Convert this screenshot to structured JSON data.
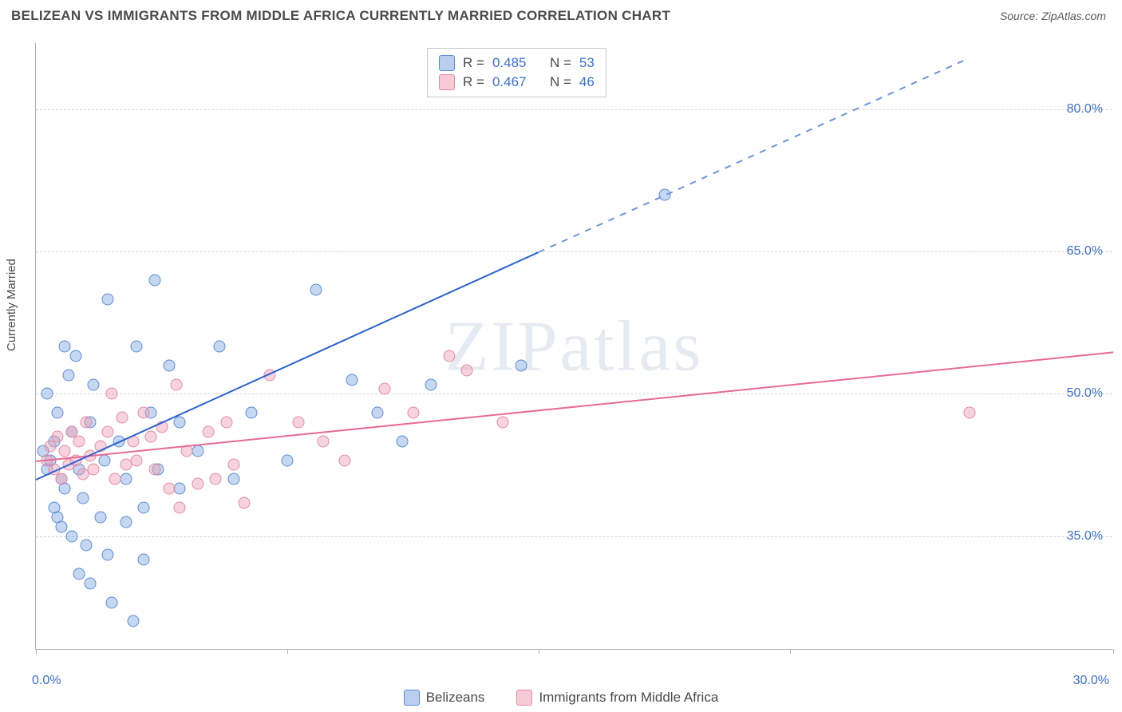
{
  "title": "BELIZEAN VS IMMIGRANTS FROM MIDDLE AFRICA CURRENTLY MARRIED CORRELATION CHART",
  "source": "Source: ZipAtlas.com",
  "watermark": "ZIPatlas",
  "y_axis_label": "Currently Married",
  "chart": {
    "type": "scatter",
    "xlim": [
      0,
      30
    ],
    "ylim": [
      23,
      87
    ],
    "x_ticks": [
      0,
      7,
      14,
      21,
      30
    ],
    "x_tick_labels": [
      "0.0%",
      "",
      "",
      "",
      "30.0%"
    ],
    "y_ticks": [
      35,
      50,
      65,
      80
    ],
    "y_tick_labels": [
      "35.0%",
      "50.0%",
      "65.0%",
      "80.0%"
    ],
    "grid_color": "#d6d6d6",
    "axis_color": "#b0b0b0",
    "background_color": "#ffffff",
    "tick_label_color": "#3b6fd6",
    "marker_radius": 7.5,
    "marker_fill_opacity": 0.45
  },
  "series": [
    {
      "name": "Belizeans",
      "color": "#5a8cd6",
      "fill": "rgba(128,168,223,0.45)",
      "R": 0.485,
      "N": 53,
      "trend": {
        "x1": 0,
        "y1": 41,
        "x2_solid": 14,
        "y2_solid": 65,
        "x2_dash": 26,
        "y2_dash": 85.5,
        "solid_color": "#2a62d4",
        "dash_color": "#6a94dc"
      },
      "points": [
        [
          0.2,
          44
        ],
        [
          0.3,
          50
        ],
        [
          0.3,
          42
        ],
        [
          0.4,
          43
        ],
        [
          0.5,
          45
        ],
        [
          0.5,
          38
        ],
        [
          0.6,
          48
        ],
        [
          0.6,
          37
        ],
        [
          0.7,
          41
        ],
        [
          0.7,
          36
        ],
        [
          0.8,
          55
        ],
        [
          0.8,
          40
        ],
        [
          0.9,
          52
        ],
        [
          1.0,
          46
        ],
        [
          1.0,
          35
        ],
        [
          1.1,
          54
        ],
        [
          1.2,
          42
        ],
        [
          1.2,
          31
        ],
        [
          1.3,
          39
        ],
        [
          1.4,
          34
        ],
        [
          1.5,
          47
        ],
        [
          1.5,
          30
        ],
        [
          1.6,
          51
        ],
        [
          1.8,
          37
        ],
        [
          1.9,
          43
        ],
        [
          2.0,
          60
        ],
        [
          2.0,
          33
        ],
        [
          2.1,
          28
        ],
        [
          2.3,
          45
        ],
        [
          2.5,
          41
        ],
        [
          2.5,
          36.5
        ],
        [
          2.7,
          26
        ],
        [
          2.8,
          55
        ],
        [
          3.0,
          38
        ],
        [
          3.0,
          32.5
        ],
        [
          3.2,
          48
        ],
        [
          3.3,
          62
        ],
        [
          3.4,
          42
        ],
        [
          3.7,
          53
        ],
        [
          4.0,
          40
        ],
        [
          4.0,
          47
        ],
        [
          4.5,
          44
        ],
        [
          5.1,
          55
        ],
        [
          5.5,
          41
        ],
        [
          6.0,
          48
        ],
        [
          7.0,
          43
        ],
        [
          7.8,
          61
        ],
        [
          8.8,
          51.5
        ],
        [
          9.5,
          48
        ],
        [
          10.2,
          45
        ],
        [
          11.0,
          51
        ],
        [
          13.5,
          53
        ],
        [
          17.5,
          71
        ]
      ]
    },
    {
      "name": "Immigrants from Middle Africa",
      "color": "#e589a5",
      "fill": "rgba(238,160,180,0.45)",
      "R": 0.467,
      "N": 46,
      "trend": {
        "x1": 0,
        "y1": 43,
        "x2_solid": 30,
        "y2_solid": 54.5,
        "solid_color": "#e86b93"
      },
      "points": [
        [
          0.3,
          43
        ],
        [
          0.4,
          44.5
        ],
        [
          0.5,
          42
        ],
        [
          0.6,
          45.5
        ],
        [
          0.7,
          41
        ],
        [
          0.8,
          44
        ],
        [
          0.9,
          42.5
        ],
        [
          1.0,
          46
        ],
        [
          1.1,
          43
        ],
        [
          1.2,
          45
        ],
        [
          1.3,
          41.5
        ],
        [
          1.4,
          47
        ],
        [
          1.5,
          43.5
        ],
        [
          1.6,
          42
        ],
        [
          1.8,
          44.5
        ],
        [
          2.0,
          46
        ],
        [
          2.1,
          50
        ],
        [
          2.2,
          41
        ],
        [
          2.4,
          47.5
        ],
        [
          2.5,
          42.5
        ],
        [
          2.7,
          45
        ],
        [
          2.8,
          43
        ],
        [
          3.0,
          48
        ],
        [
          3.2,
          45.5
        ],
        [
          3.3,
          42
        ],
        [
          3.5,
          46.5
        ],
        [
          3.7,
          40
        ],
        [
          3.9,
          51
        ],
        [
          4.0,
          38
        ],
        [
          4.2,
          44
        ],
        [
          4.5,
          40.5
        ],
        [
          4.8,
          46
        ],
        [
          5.0,
          41
        ],
        [
          5.3,
          47
        ],
        [
          5.5,
          42.5
        ],
        [
          5.8,
          38.5
        ],
        [
          6.5,
          52
        ],
        [
          7.3,
          47
        ],
        [
          8.0,
          45
        ],
        [
          8.6,
          43
        ],
        [
          9.7,
          50.5
        ],
        [
          10.5,
          48
        ],
        [
          11.5,
          54
        ],
        [
          12.0,
          52.5
        ],
        [
          13.0,
          47
        ],
        [
          26.0,
          48
        ]
      ]
    }
  ],
  "legend": {
    "r_label": "R =",
    "n_label": "N =",
    "bottom_labels": [
      "Belizeans",
      "Immigrants from Middle Africa"
    ]
  }
}
